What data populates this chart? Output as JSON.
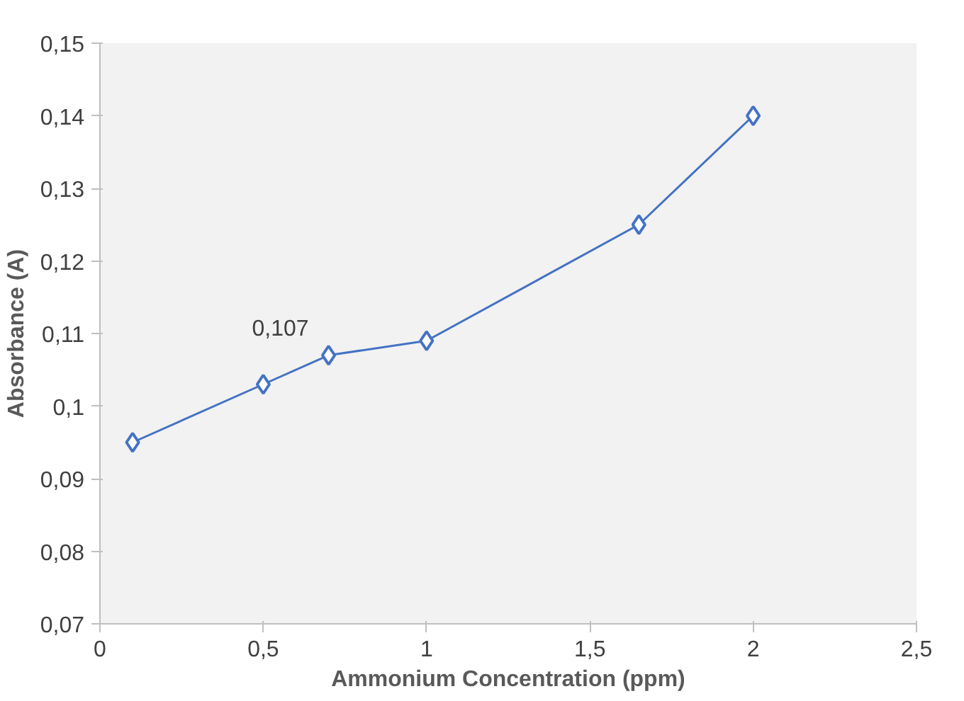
{
  "chart_data": {
    "type": "line",
    "xlabel": "Ammonium Concentration (ppm)",
    "ylabel": "Absorbance (A)",
    "x": [
      0.1,
      0.5,
      0.7,
      1,
      1.65,
      2
    ],
    "series": [
      {
        "color": "#4472c4",
        "values": [
          0.095,
          0.103,
          0.107,
          0.109,
          0.125,
          0.14
        ]
      }
    ],
    "annotations": [
      {
        "text": "0,107",
        "x": 0.7,
        "y": 0.107
      }
    ],
    "xlim": [
      0,
      2.5
    ],
    "xticks": [
      0,
      {
        "value": 0.5,
        "label": "0,5"
      },
      1,
      {
        "value": 1.5,
        "label": "1,5"
      },
      2,
      {
        "value": 2.5,
        "label": "2,5"
      }
    ],
    "ylim": [
      0.07,
      0.15
    ],
    "yticks": [
      {
        "value": 0.07,
        "label": "0,07"
      },
      {
        "value": 0.08,
        "label": "0,08"
      },
      {
        "value": 0.09,
        "label": "0,09"
      },
      {
        "value": 0.1,
        "label": "0,1"
      },
      {
        "value": 0.11,
        "label": "0,11"
      },
      {
        "value": 0.12,
        "label": "0,12"
      },
      {
        "value": 0.13,
        "label": "0,13"
      },
      {
        "value": 0.14,
        "label": "0,14"
      },
      {
        "value": 0.15,
        "label": "0,15"
      }
    ],
    "grid": false,
    "marker": "diamond",
    "line_style": "solid"
  }
}
